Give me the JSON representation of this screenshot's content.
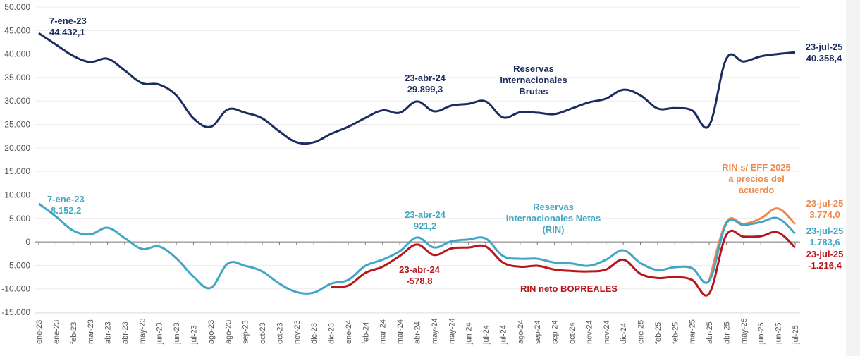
{
  "chart_data": {
    "type": "line",
    "grid": true,
    "ylim": [
      -15000,
      50000
    ],
    "yticks": [
      50000,
      45000,
      40000,
      35000,
      30000,
      25000,
      20000,
      15000,
      10000,
      5000,
      0,
      -5000,
      -10000,
      -15000
    ],
    "ytick_labels": [
      "50.000",
      "45.000",
      "40.000",
      "35.000",
      "30.000",
      "25.000",
      "20.000",
      "15.000",
      "10.000",
      "5.000",
      "0",
      "-5.000",
      "-10.000",
      "-15.000"
    ],
    "categories": [
      "ene-23",
      "ene-23",
      "feb-23",
      "mar-23",
      "abr-23",
      "abr-23",
      "may-23",
      "jun-23",
      "jun-23",
      "jul-23",
      "ago-23",
      "ago-23",
      "sep-23",
      "oct-23",
      "oct-23",
      "nov-23",
      "dic-23",
      "dic-23",
      "ene-24",
      "feb-24",
      "mar-24",
      "mar-24",
      "abr-24",
      "may-24",
      "may-24",
      "jun-24",
      "jul-24",
      "jul-24",
      "ago-24",
      "sep-24",
      "sep-24",
      "oct-24",
      "nov-24",
      "nov-24",
      "dic-24",
      "ene-25",
      "feb-25",
      "feb-25",
      "mar-25",
      "abr-25",
      "abr-25",
      "may-25",
      "jun-25",
      "jun-25",
      "jul-25"
    ],
    "series": [
      {
        "name": "Reservas Internacionales Brutas",
        "color": "#1b2d5e",
        "values": [
          44432,
          42000,
          39600,
          38300,
          39000,
          36500,
          33800,
          33500,
          31200,
          26300,
          24500,
          28200,
          27500,
          26300,
          23500,
          21200,
          21200,
          23000,
          24500,
          26400,
          28000,
          27500,
          29899,
          27800,
          29000,
          29400,
          29900,
          26500,
          27600,
          27500,
          27200,
          28400,
          29700,
          30500,
          32400,
          31200,
          28400,
          28500,
          28000,
          24800,
          39000,
          38400,
          39500,
          40000,
          40358
        ]
      },
      {
        "name": "Reservas Internacionales Netas (RIN)",
        "color": "#41a6c4",
        "values": [
          8152,
          5400,
          2400,
          1600,
          3000,
          800,
          -1500,
          -1000,
          -3500,
          -7400,
          -9800,
          -4600,
          -5100,
          -6300,
          -8900,
          -10700,
          -10800,
          -8900,
          -8100,
          -5100,
          -3800,
          -2000,
          921,
          -1200,
          100,
          500,
          700,
          -3000,
          -3600,
          -3600,
          -4400,
          -4600,
          -5100,
          -3800,
          -1800,
          -4500,
          -6000,
          -5400,
          -5600,
          -8300,
          3900,
          3600,
          4200,
          5000,
          1784
        ]
      },
      {
        "name": "RIN neto BOPREALES",
        "color": "#b8161c",
        "values": [
          null,
          null,
          null,
          null,
          null,
          null,
          null,
          null,
          null,
          null,
          null,
          null,
          null,
          null,
          null,
          null,
          null,
          -9600,
          -9300,
          -6600,
          -5300,
          -3000,
          -579,
          -2800,
          -1400,
          -1200,
          -1000,
          -4400,
          -5300,
          -5100,
          -5900,
          -6200,
          -6300,
          -5900,
          -3800,
          -6800,
          -7700,
          -7500,
          -8100,
          -11000,
          1500,
          1100,
          1200,
          2000,
          -1216
        ]
      },
      {
        "name": "RIN s/ EFF 2025 a precios del acuerdo",
        "color": "#ec8a4e",
        "values": [
          null,
          null,
          null,
          null,
          null,
          null,
          null,
          null,
          null,
          null,
          null,
          null,
          null,
          null,
          null,
          null,
          null,
          null,
          null,
          null,
          null,
          null,
          null,
          null,
          null,
          null,
          null,
          null,
          null,
          null,
          null,
          null,
          null,
          null,
          null,
          null,
          null,
          null,
          null,
          -8300,
          4200,
          3800,
          5000,
          7100,
          3774
        ]
      }
    ],
    "annotations": {
      "brutas_start": {
        "date": "7-ene-23",
        "value": "44.432,1"
      },
      "brutas_mid": {
        "date": "23-abr-24",
        "value": "29.899,3"
      },
      "brutas_end": {
        "date": "23-jul-25",
        "value": "40.358,4"
      },
      "brutas_label": [
        "Reservas",
        "Internacionales",
        "Brutas"
      ],
      "rin_start": {
        "date": "7-ene-23",
        "value": "8.152,2"
      },
      "rin_mid": {
        "date": "23-abr-24",
        "value": "921,2"
      },
      "rin_end": {
        "date": "23-jul-25",
        "value": "1.783,6"
      },
      "rin_label": [
        "Reservas",
        "Internacionales Netas",
        "(RIN)"
      ],
      "neto_mid": {
        "date": "23-abr-24",
        "value": "-578,8"
      },
      "neto_end": {
        "date": "23-jul-25",
        "value": "-1.216,4"
      },
      "neto_label": "RIN neto BOPREALES",
      "eff_end": {
        "date": "23-jul-25",
        "value": "3.774,0"
      },
      "eff_label": [
        "RIN s/ EFF 2025",
        "a precios del",
        "acuerdo"
      ]
    }
  }
}
